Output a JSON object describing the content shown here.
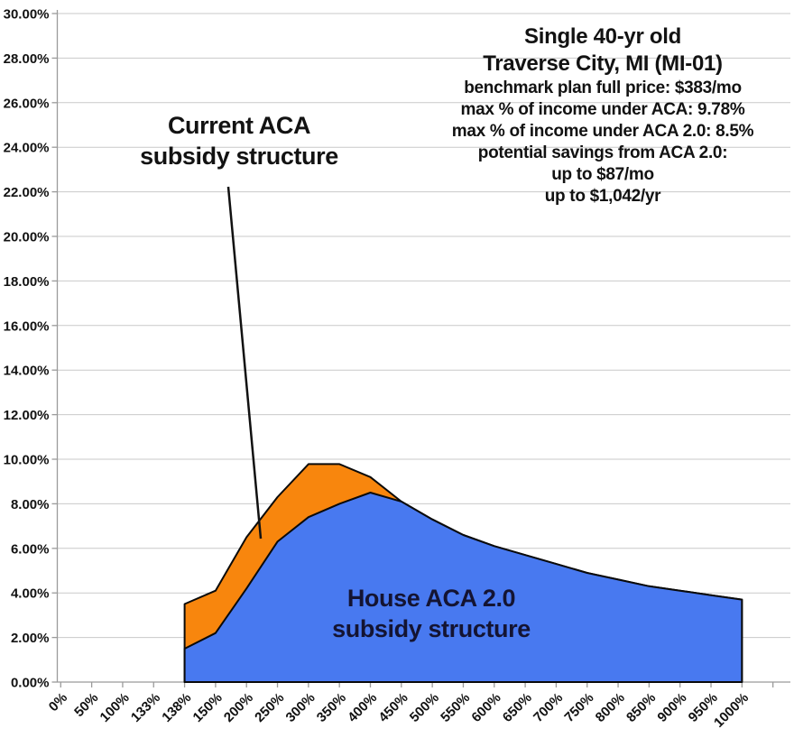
{
  "info_box": {
    "title_line1": "Single 40-yr old",
    "title_line2": "Traverse City, MI (MI-01)",
    "details": [
      "benchmark plan full price: $383/mo",
      "max % of income under ACA: 9.78%",
      "max % of income under ACA 2.0: 8.5%",
      "potential savings from ACA 2.0:",
      "up to $87/mo",
      "up to $1,042/yr"
    ]
  },
  "annotations": {
    "current_aca_line1": "Current ACA",
    "current_aca_line2": "subsidy structure",
    "house_line1": "House ACA 2.0",
    "house_line2": "subsidy structure"
  },
  "style_colors": {
    "current_aca_fill": "#F8860D",
    "house_aca_fill": "#4879F0",
    "area_outline": "#0a0a0a",
    "gridline": "#c9c9c9",
    "axis": "#9b9b9b",
    "tick": "#9b9b9b",
    "text": "#121212",
    "house_label_text": "#141432",
    "leader_line": "#111111"
  },
  "chart_data": {
    "type": "area",
    "title": "",
    "xlabel": "",
    "ylabel": "",
    "ylim": [
      0,
      30
    ],
    "ytick_step": 2,
    "ytick_label_format": "percent_2dp",
    "grid": true,
    "legend_position": "none",
    "categories": [
      "0%",
      "50%",
      "100%",
      "133%",
      "138%",
      "150%",
      "200%",
      "250%",
      "300%",
      "350%",
      "400%",
      "450%",
      "500%",
      "550%",
      "600%",
      "650%",
      "700%",
      "750%",
      "800%",
      "850%",
      "900%",
      "950%",
      "1000%"
    ],
    "series": [
      {
        "name": "Current ACA subsidy structure",
        "color": "#F8860D",
        "values": [
          null,
          null,
          null,
          null,
          3.5,
          4.1,
          6.5,
          8.3,
          9.78,
          9.78,
          9.2,
          8.1,
          7.3,
          6.6,
          6.1,
          5.7,
          5.3,
          4.9,
          4.6,
          4.3,
          4.1,
          3.9,
          3.7
        ]
      },
      {
        "name": "House ACA 2.0 subsidy structure",
        "color": "#4879F0",
        "values": [
          null,
          null,
          null,
          null,
          1.5,
          2.2,
          4.2,
          6.3,
          7.4,
          8.0,
          8.5,
          8.1,
          7.3,
          6.6,
          6.1,
          5.7,
          5.3,
          4.9,
          4.6,
          4.3,
          4.1,
          3.9,
          3.7
        ]
      }
    ]
  }
}
